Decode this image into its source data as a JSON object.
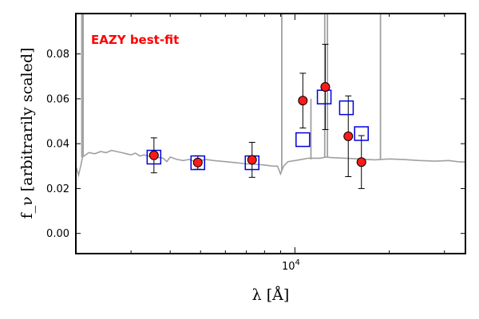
{
  "chart_data": {
    "type": "scatter",
    "title": "",
    "xlabel": "λ [Å]",
    "ylabel": "f_ν [arbitrarily scaled]",
    "annotation": "EAZY best-fit",
    "xscale": "log",
    "xlim": [
      2000,
      35000
    ],
    "ylim": [
      -0.009,
      0.098
    ],
    "yticks": [
      {
        "value": 0.0,
        "label": "0.00"
      },
      {
        "value": 0.02,
        "label": "0.02"
      },
      {
        "value": 0.04,
        "label": "0.04"
      },
      {
        "value": 0.06,
        "label": "0.06"
      },
      {
        "value": 0.08,
        "label": "0.08"
      }
    ],
    "xticks": [
      {
        "value": 10000,
        "label_base": "10",
        "label_exp": "4"
      }
    ],
    "grid": false,
    "colors": {
      "observed_face": "#ff1a1a",
      "observed_edge": "#000000",
      "model_box": "#0000dd",
      "template": "#a0a0a0",
      "annotation": "#ff0000"
    },
    "observed": [
      {
        "x": 3550,
        "y": 0.0348,
        "yerr_lo": 0.0078,
        "yerr_hi": 0.0078
      },
      {
        "x": 4900,
        "y": 0.0316,
        "yerr_lo": 0.003,
        "yerr_hi": 0.003
      },
      {
        "x": 7300,
        "y": 0.0328,
        "yerr_lo": 0.0078,
        "yerr_hi": 0.0078
      },
      {
        "x": 10600,
        "y": 0.0592,
        "yerr_lo": 0.0122,
        "yerr_hi": 0.0122
      },
      {
        "x": 12500,
        "y": 0.0653,
        "yerr_lo": 0.019,
        "yerr_hi": 0.019
      },
      {
        "x": 14800,
        "y": 0.0433,
        "yerr_lo": 0.018,
        "yerr_hi": 0.018
      },
      {
        "x": 16300,
        "y": 0.0318,
        "yerr_lo": 0.0118,
        "yerr_hi": 0.0118
      }
    ],
    "model": [
      {
        "x": 3550,
        "y": 0.034
      },
      {
        "x": 4900,
        "y": 0.0315
      },
      {
        "x": 7300,
        "y": 0.0315
      },
      {
        "x": 10600,
        "y": 0.0418
      },
      {
        "x": 12400,
        "y": 0.0608
      },
      {
        "x": 14600,
        "y": 0.056
      },
      {
        "x": 16300,
        "y": 0.0445
      }
    ],
    "template_spectrum": [
      [
        2000,
        0.03
      ],
      [
        2040,
        0.026
      ],
      [
        2080,
        0.031
      ],
      [
        2100,
        0.034
      ],
      [
        2200,
        0.036
      ],
      [
        2300,
        0.0355
      ],
      [
        2400,
        0.0365
      ],
      [
        2500,
        0.036
      ],
      [
        2600,
        0.037
      ],
      [
        2700,
        0.0365
      ],
      [
        2800,
        0.036
      ],
      [
        2900,
        0.0355
      ],
      [
        3000,
        0.035
      ],
      [
        3100,
        0.0358
      ],
      [
        3200,
        0.0345
      ],
      [
        3300,
        0.035
      ],
      [
        3400,
        0.0345
      ],
      [
        3600,
        0.034
      ],
      [
        3800,
        0.0335
      ],
      [
        3900,
        0.032
      ],
      [
        4000,
        0.034
      ],
      [
        4200,
        0.033
      ],
      [
        4400,
        0.0325
      ],
      [
        4600,
        0.033
      ],
      [
        4800,
        0.032
      ],
      [
        5000,
        0.0325
      ],
      [
        5200,
        0.033
      ],
      [
        5500,
        0.0325
      ],
      [
        6000,
        0.032
      ],
      [
        6500,
        0.0315
      ],
      [
        7000,
        0.031
      ],
      [
        7500,
        0.0308
      ],
      [
        8000,
        0.0305
      ],
      [
        8500,
        0.03
      ],
      [
        8800,
        0.03
      ],
      [
        9000,
        0.0265
      ],
      [
        9200,
        0.03
      ],
      [
        9500,
        0.032
      ],
      [
        10000,
        0.0325
      ],
      [
        10500,
        0.033
      ],
      [
        11000,
        0.0335
      ],
      [
        11500,
        0.0335
      ],
      [
        12000,
        0.0335
      ],
      [
        12600,
        0.034
      ],
      [
        13000,
        0.0338
      ],
      [
        14000,
        0.0336
      ],
      [
        15000,
        0.0334
      ],
      [
        16000,
        0.0332
      ],
      [
        17000,
        0.033
      ],
      [
        18000,
        0.0328
      ],
      [
        20000,
        0.0332
      ],
      [
        22000,
        0.033
      ],
      [
        25000,
        0.0325
      ],
      [
        28000,
        0.0322
      ],
      [
        31000,
        0.0325
      ],
      [
        33000,
        0.032
      ],
      [
        35000,
        0.0318
      ]
    ],
    "emission_lines": [
      {
        "x": 2090,
        "top": 0.098,
        "base": 0.034
      },
      {
        "x": 2110,
        "top": 0.098,
        "base": 0.034
      },
      {
        "x": 9080,
        "top": 0.098,
        "base": 0.028
      },
      {
        "x": 11250,
        "top": 0.06,
        "base": 0.033
      },
      {
        "x": 12450,
        "top": 0.098,
        "base": 0.034
      },
      {
        "x": 12700,
        "top": 0.098,
        "base": 0.034
      },
      {
        "x": 18750,
        "top": 0.098,
        "base": 0.033
      }
    ]
  }
}
